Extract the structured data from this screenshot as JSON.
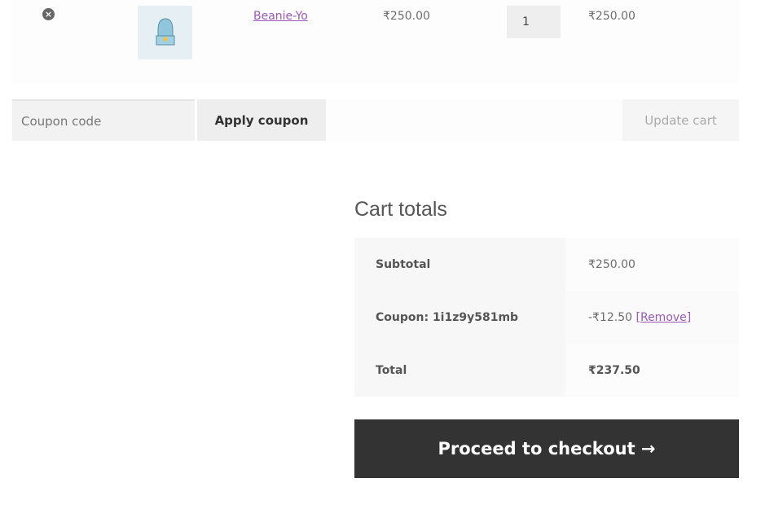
{
  "cart_item": {
    "remove_icon": "times-circle-icon",
    "product_name": "Beanie-Yo",
    "price": "₹250.00",
    "quantity": "1",
    "subtotal": "₹250.00"
  },
  "coupon": {
    "placeholder": "Coupon code",
    "apply_label": "Apply coupon",
    "update_label": "Update cart"
  },
  "totals": {
    "heading": "Cart totals",
    "subtotal_label": "Subtotal",
    "subtotal_value": "₹250.00",
    "coupon_label": "Coupon: 1i1z9y581mb",
    "coupon_value": "-₹12.50",
    "remove_open": "[",
    "remove_label": "Remove",
    "remove_close": "]",
    "total_label": "Total",
    "total_value": "₹237.50"
  },
  "checkout": {
    "label": "Proceed to checkout",
    "icon": "→"
  },
  "colors": {
    "link": "#9b59b6",
    "checkout_bg": "#333333"
  }
}
